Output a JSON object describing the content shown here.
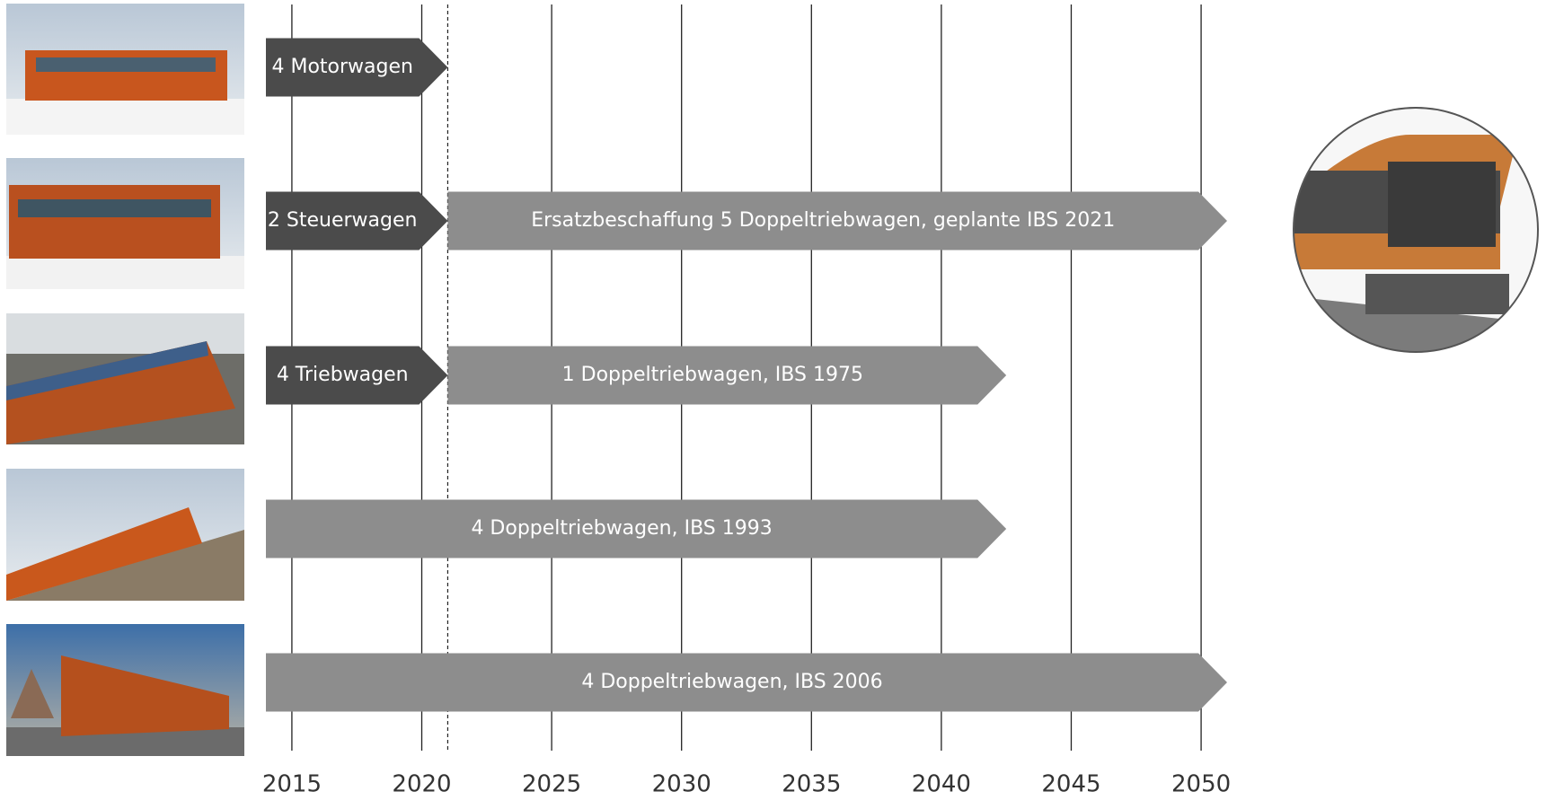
{
  "chart_data": {
    "type": "timeline",
    "xlim": [
      2014,
      2051
    ],
    "xticks": [
      2015,
      2020,
      2025,
      2030,
      2035,
      2040,
      2045,
      2050
    ],
    "reference_line": 2021,
    "grid": true,
    "rows": [
      {
        "segments": [
          {
            "label": "4 Motorwagen",
            "start": 2014,
            "end": 2021,
            "color": "#4b4b4b"
          }
        ]
      },
      {
        "segments": [
          {
            "label": "2 Steuerwagen",
            "start": 2014,
            "end": 2021,
            "color": "#4b4b4b"
          },
          {
            "label": "Ersatzbeschaffung 5 Doppeltriebwagen, geplante IBS 2021",
            "start": 2021,
            "end": 2051,
            "color": "#8d8d8d"
          }
        ]
      },
      {
        "segments": [
          {
            "label": "4 Triebwagen",
            "start": 2014,
            "end": 2021,
            "color": "#4b4b4b"
          },
          {
            "label": "1 Doppeltriebwagen, IBS 1975",
            "start": 2021,
            "end": 2042.5,
            "color": "#8d8d8d"
          }
        ]
      },
      {
        "segments": [
          {
            "label": "4 Doppeltriebwagen, IBS 1993",
            "start": 2014,
            "end": 2042.5,
            "color": "#8d8d8d"
          }
        ]
      },
      {
        "segments": [
          {
            "label": "4 Doppeltriebwagen, IBS 2006",
            "start": 2014,
            "end": 2051,
            "color": "#8d8d8d"
          }
        ]
      }
    ]
  }
}
